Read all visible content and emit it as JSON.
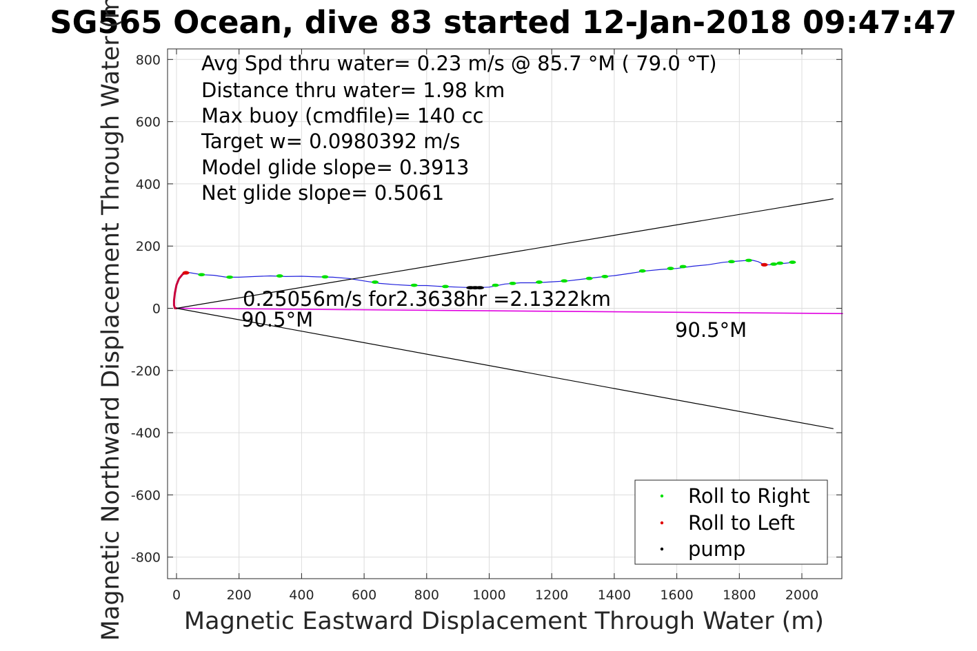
{
  "chart_data": {
    "type": "line",
    "title": "SG565 Ocean, dive 83 started 12-Jan-2018 09:47:47",
    "xlabel": "Magnetic Eastward Displacement Through Water (m)",
    "ylabel": "Magnetic Northward Displacement Through Water (m)",
    "xlim": [
      -30,
      2130
    ],
    "ylim": [
      -870,
      830
    ],
    "xticks": [
      0,
      200,
      400,
      600,
      800,
      1000,
      1200,
      1400,
      1600,
      1800,
      2000
    ],
    "yticks": [
      800,
      600,
      400,
      200,
      0,
      -200,
      -400,
      -600,
      -800
    ],
    "ytick_labels": [
      "800",
      "600",
      "400",
      "200",
      "0",
      "-200",
      "-400",
      "-600",
      "-800"
    ],
    "grid": true,
    "info_text": [
      "Avg Spd thru water=  0.23 m/s @  85.7 °M ( 79.0 °T)",
      "Distance thru water=  1.98 km",
      "Max buoy (cmdfile)= 140 cc",
      "Target w= 0.0980392 m/s",
      "Model glide slope= 0.3913",
      "Net glide slope= 0.5061"
    ],
    "annotations": {
      "current": "0.25056m/s for2.3638hr =2.1322km",
      "heading_start": "90.5°M",
      "heading_end": "90.5°M"
    },
    "colors": {
      "track": "#1f1fdc",
      "roll_right": "#00e000",
      "roll_left": "#e00000",
      "pump": "#000000",
      "current_line": "#e000e0",
      "cone_lines": "#000000",
      "start_arc": "#c8003c"
    },
    "series": [
      {
        "name": "track",
        "x": [
          20,
          40,
          80,
          120,
          160,
          200,
          250,
          300,
          350,
          400,
          450,
          500,
          550,
          600,
          650,
          700,
          750,
          800,
          850,
          900,
          950,
          1000,
          1050,
          1100,
          1150,
          1200,
          1250,
          1300,
          1350,
          1400,
          1450,
          1500,
          1550,
          1600,
          1650,
          1700,
          1750,
          1800,
          1840,
          1860,
          1880,
          1900,
          1950,
          1975
        ],
        "y": [
          112,
          115,
          108,
          106,
          100,
          100,
          102,
          104,
          102,
          103,
          101,
          100,
          96,
          88,
          80,
          76,
          73,
          73,
          70,
          68,
          66,
          68,
          78,
          82,
          82,
          85,
          88,
          94,
          100,
          105,
          112,
          120,
          125,
          128,
          135,
          140,
          148,
          152,
          155,
          150,
          140,
          140,
          145,
          148
        ]
      },
      {
        "name": "start_arc",
        "x": [
          35,
          20,
          8,
          0,
          -5,
          -8,
          -8,
          -5,
          0
        ],
        "y": [
          115,
          110,
          95,
          75,
          50,
          25,
          10,
          0,
          0
        ]
      },
      {
        "name": "current_line",
        "x": [
          0,
          2130
        ],
        "y": [
          0,
          -17
        ]
      },
      {
        "name": "cone_upper",
        "x": [
          0,
          2100
        ],
        "y": [
          0,
          352
        ]
      },
      {
        "name": "cone_lower",
        "x": [
          0,
          2100
        ],
        "y": [
          0,
          -387
        ]
      }
    ],
    "roll_right_points": {
      "x": [
        80,
        170,
        330,
        475,
        635,
        760,
        860,
        1020,
        1075,
        1160,
        1240,
        1320,
        1370,
        1490,
        1580,
        1620,
        1775,
        1830,
        1910,
        1930,
        1970
      ],
      "y": [
        108,
        100,
        104,
        101,
        84,
        74,
        70,
        74,
        80,
        84,
        88,
        96,
        102,
        120,
        128,
        134,
        150,
        154,
        142,
        145,
        148
      ]
    },
    "roll_left_points": {
      "x": [
        30,
        1880
      ],
      "y": [
        114,
        140
      ]
    },
    "pump_points": {
      "x": [
        940,
        955,
        970
      ],
      "y": [
        66,
        66,
        66
      ]
    },
    "legend": {
      "location": "bottom-right",
      "entries": [
        "Roll to Right",
        "Roll to Left",
        "pump"
      ]
    }
  }
}
